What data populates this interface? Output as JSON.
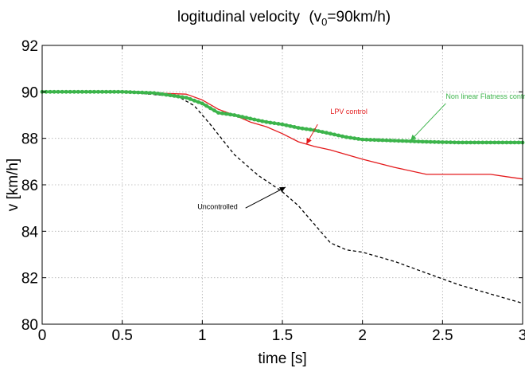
{
  "chart_data": {
    "type": "line",
    "title": "logitudinal velocity",
    "title_paren_open": "(v",
    "title_sub": "0",
    "title_rest": "=90km/h)",
    "xlabel": "time [s]",
    "ylabel": "v  [km/h]",
    "xlim": [
      0,
      3
    ],
    "ylim": [
      80,
      92
    ],
    "xticks": [
      0,
      0.5,
      1,
      1.5,
      2,
      2.5,
      3
    ],
    "xtick_labels": [
      "0",
      "0.5",
      "1",
      "1.5",
      "2",
      "2.5",
      "3"
    ],
    "yticks": [
      80,
      82,
      84,
      86,
      88,
      90,
      92
    ],
    "ytick_labels": [
      "80",
      "82",
      "84",
      "86",
      "88",
      "90",
      "92"
    ],
    "grid": true,
    "series": [
      {
        "color": "#000000",
        "style": "dashed",
        "x": [
          0,
          0.5,
          0.85,
          0.95,
          1.05,
          1.2,
          1.35,
          1.5,
          1.6,
          1.7,
          1.8,
          1.9,
          2.0,
          2.2,
          2.4,
          2.6,
          2.8,
          3.0
        ],
        "y": [
          90.0,
          90.0,
          89.8,
          89.4,
          88.6,
          87.3,
          86.4,
          85.7,
          85.1,
          84.3,
          83.5,
          83.2,
          83.1,
          82.7,
          82.2,
          81.7,
          81.3,
          80.9
        ]
      },
      {
        "color": "#e41a1c",
        "style": "solid",
        "x": [
          0,
          0.5,
          0.7,
          0.9,
          1.0,
          1.1,
          1.2,
          1.3,
          1.4,
          1.5,
          1.6,
          1.7,
          1.8,
          2.0,
          2.2,
          2.4,
          2.6,
          2.8,
          3.0
        ],
        "y": [
          90.0,
          90.0,
          89.95,
          89.9,
          89.65,
          89.25,
          89.0,
          88.7,
          88.5,
          88.2,
          87.85,
          87.65,
          87.5,
          87.1,
          86.75,
          86.45,
          86.45,
          86.45,
          86.25
        ]
      },
      {
        "color": "#3cb44b",
        "style": "markers",
        "x": [
          0,
          0.5,
          0.7,
          0.9,
          1.0,
          1.1,
          1.2,
          1.3,
          1.4,
          1.5,
          1.6,
          1.7,
          1.8,
          1.9,
          2.0,
          2.2,
          2.4,
          2.6,
          2.8,
          3.0
        ],
        "y": [
          90.0,
          90.0,
          89.95,
          89.75,
          89.5,
          89.1,
          89.0,
          88.85,
          88.7,
          88.6,
          88.45,
          88.35,
          88.2,
          88.05,
          87.95,
          87.9,
          87.85,
          87.82,
          87.82,
          87.82
        ]
      }
    ],
    "annotations": [
      {
        "text": "Uncontrolled",
        "color": "#000000",
        "text_x": 0.97,
        "text_y": 84.95,
        "arrow_from": [
          1.27,
          85.0
        ],
        "arrow_to": [
          1.52,
          85.9
        ]
      },
      {
        "text": "LPV control",
        "color": "#e41a1c",
        "text_x": 1.8,
        "text_y": 89.05,
        "arrow_from": [
          1.72,
          88.6
        ],
        "arrow_to": [
          1.65,
          87.75
        ]
      },
      {
        "text": "Non linear Flatness control",
        "color": "#3cb44b",
        "text_x": 2.52,
        "text_y": 89.7,
        "arrow_from": [
          2.52,
          89.5
        ],
        "arrow_to": [
          2.3,
          87.9
        ]
      }
    ]
  }
}
